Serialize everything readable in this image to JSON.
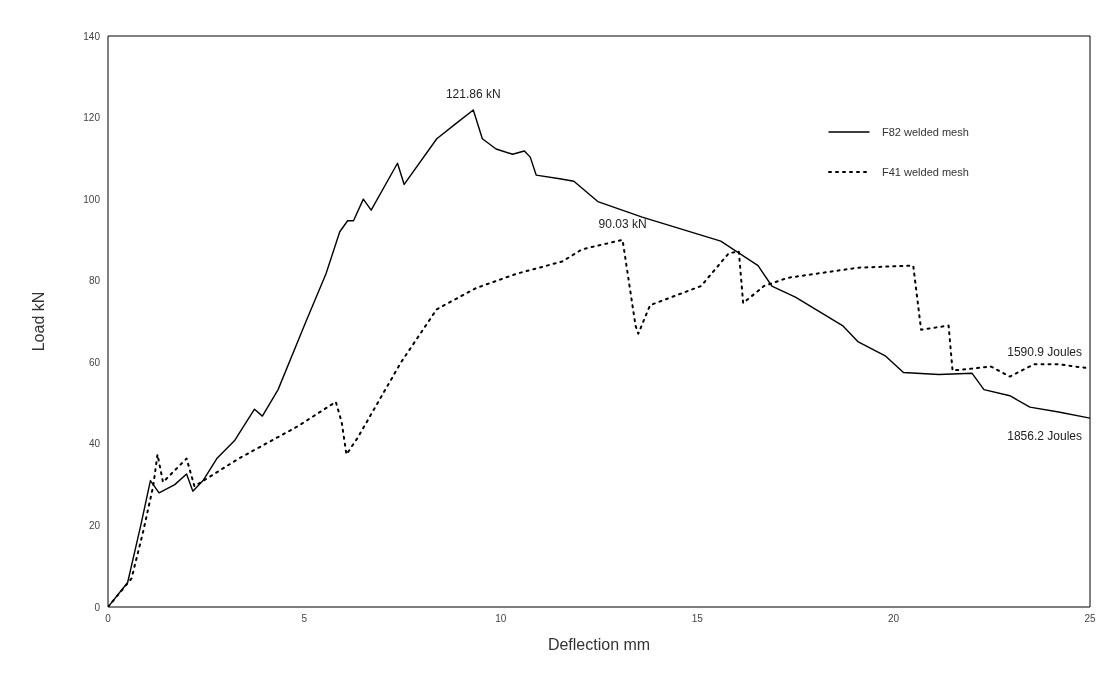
{
  "chart_data": {
    "type": "line",
    "xlabel": "Deflection mm",
    "ylabel": "Load kN",
    "xlim": [
      0,
      25
    ],
    "xticks": [
      0,
      5,
      10,
      15,
      20,
      25
    ],
    "ylim": [
      0,
      140
    ],
    "yticks": [
      0,
      20,
      40,
      60,
      80,
      100,
      120,
      140
    ],
    "grid": false,
    "legend": "top right",
    "series": [
      {
        "name": "F82 welded mesh",
        "color": "#000000",
        "line_style": "solid",
        "x": [
          0,
          0.5,
          0.85,
          1.08,
          1.3,
          1.7,
          2.0,
          2.16,
          2.42,
          2.77,
          3.23,
          3.73,
          3.93,
          4.33,
          5.04,
          5.55,
          5.9,
          6.1,
          6.25,
          6.5,
          6.7,
          7.37,
          7.54,
          8.37,
          8.88,
          9.3,
          9.53,
          9.88,
          10.3,
          10.6,
          10.75,
          10.9,
          11.5,
          11.86,
          12.47,
          13.6,
          15.6,
          16.55,
          16.9,
          17.5,
          18.7,
          19.1,
          19.8,
          20.25,
          21.15,
          22.0,
          22.3,
          22.96,
          23.47,
          24.2,
          25
        ],
        "values": [
          0,
          6,
          20.7,
          31,
          28,
          30,
          32.6,
          28.4,
          31,
          36.4,
          40.9,
          48.5,
          46.8,
          53.3,
          70,
          81.7,
          92,
          94.7,
          94.7,
          100,
          97.3,
          108.8,
          103.6,
          114.8,
          118.7,
          121.86,
          114.8,
          112.3,
          111,
          111.8,
          110.3,
          105.9,
          105,
          104.4,
          99.4,
          95.6,
          89.7,
          83.7,
          78.7,
          76,
          69,
          65,
          61.5,
          57.5,
          57,
          57.3,
          53.3,
          51.8,
          49,
          47.8,
          46.3
        ]
      },
      {
        "name": "F41 welded mesh",
        "color": "#000000",
        "line_style": "dotted",
        "x": [
          0,
          0.6,
          0.9,
          1.15,
          1.26,
          1.4,
          2.0,
          2.2,
          3.33,
          4.83,
          5.8,
          5.95,
          6.07,
          6.35,
          7.46,
          8.37,
          9.37,
          10.4,
          11.56,
          12.07,
          13.1,
          13.43,
          13.5,
          13.8,
          15.1,
          15.8,
          16.06,
          16.17,
          16.7,
          17.3,
          19.1,
          20.5,
          20.7,
          21.4,
          21.5,
          22.06,
          22.47,
          22.96,
          23.57,
          24.2,
          25
        ],
        "values": [
          0,
          7,
          18.7,
          29.6,
          37.4,
          30.6,
          36.4,
          29.6,
          36.4,
          44.3,
          50.3,
          45.3,
          37.4,
          41.4,
          60,
          73,
          78.2,
          81.7,
          84.7,
          87.7,
          90.03,
          69,
          67,
          74,
          78.7,
          86.7,
          87.2,
          74.5,
          78.7,
          80.7,
          83.2,
          83.7,
          68,
          69,
          58,
          58.5,
          59,
          56.5,
          59.5,
          59.5,
          58.5
        ]
      }
    ],
    "annotations": [
      {
        "text": "121.86 kN",
        "x": 9.3,
        "y": 121.86
      },
      {
        "text": "90.03 kN",
        "x": 13.1,
        "y": 90.03
      },
      {
        "text": "1590.9 Joules",
        "x": 25,
        "y": 58.5
      },
      {
        "text": "1856.2 Joules",
        "x": 25,
        "y": 46.3
      }
    ]
  }
}
